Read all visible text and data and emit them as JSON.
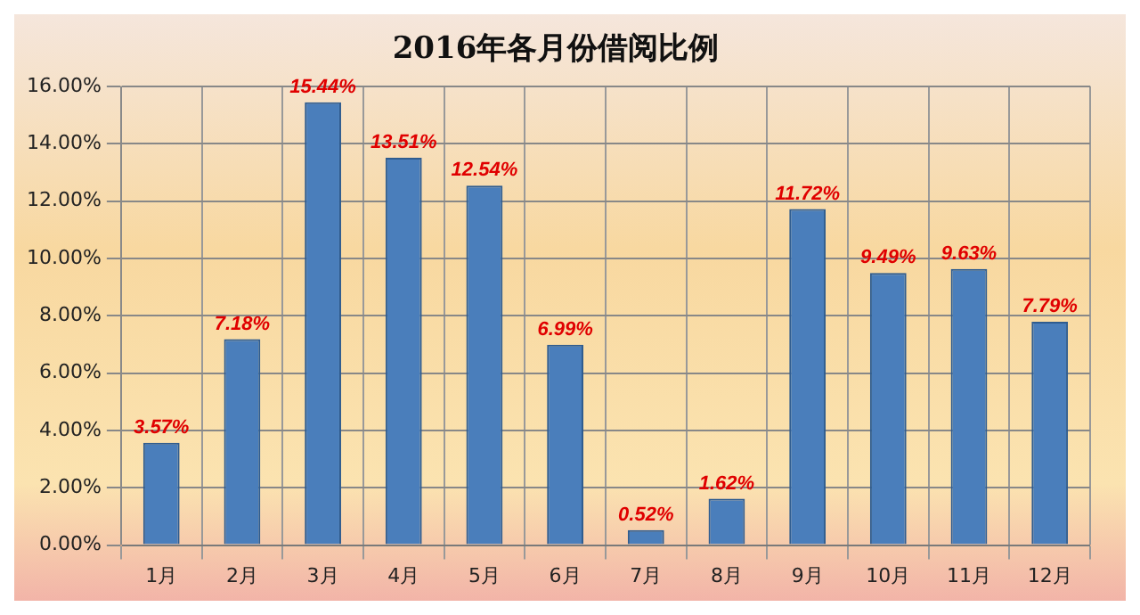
{
  "chart_data": {
    "type": "bar",
    "title": "2016年各月份借阅比例",
    "categories": [
      "1月",
      "2月",
      "3月",
      "4月",
      "5月",
      "6月",
      "7月",
      "8月",
      "9月",
      "10月",
      "11月",
      "12月"
    ],
    "values": [
      3.57,
      7.18,
      15.44,
      13.51,
      12.54,
      6.99,
      0.52,
      1.62,
      11.72,
      9.49,
      9.63,
      7.79
    ],
    "value_labels": [
      "3.57%",
      "7.18%",
      "15.44%",
      "13.51%",
      "12.54%",
      "6.99%",
      "0.52%",
      "1.62%",
      "11.72%",
      "9.49%",
      "9.63%",
      "7.79%"
    ],
    "color": "#4a7ebb",
    "ylim": [
      0,
      16
    ],
    "yticks": [
      {
        "value": 0,
        "label": "0.00%"
      },
      {
        "value": 2,
        "label": "2.00%"
      },
      {
        "value": 4,
        "label": "4.00%"
      },
      {
        "value": 6,
        "label": "6.00%"
      },
      {
        "value": 8,
        "label": "8.00%"
      },
      {
        "value": 10,
        "label": "10.00%"
      },
      {
        "value": 12,
        "label": "12.00%"
      },
      {
        "value": 14,
        "label": "14.00%"
      },
      {
        "value": 16,
        "label": "16.00%"
      }
    ],
    "grid": true,
    "legend": false
  }
}
